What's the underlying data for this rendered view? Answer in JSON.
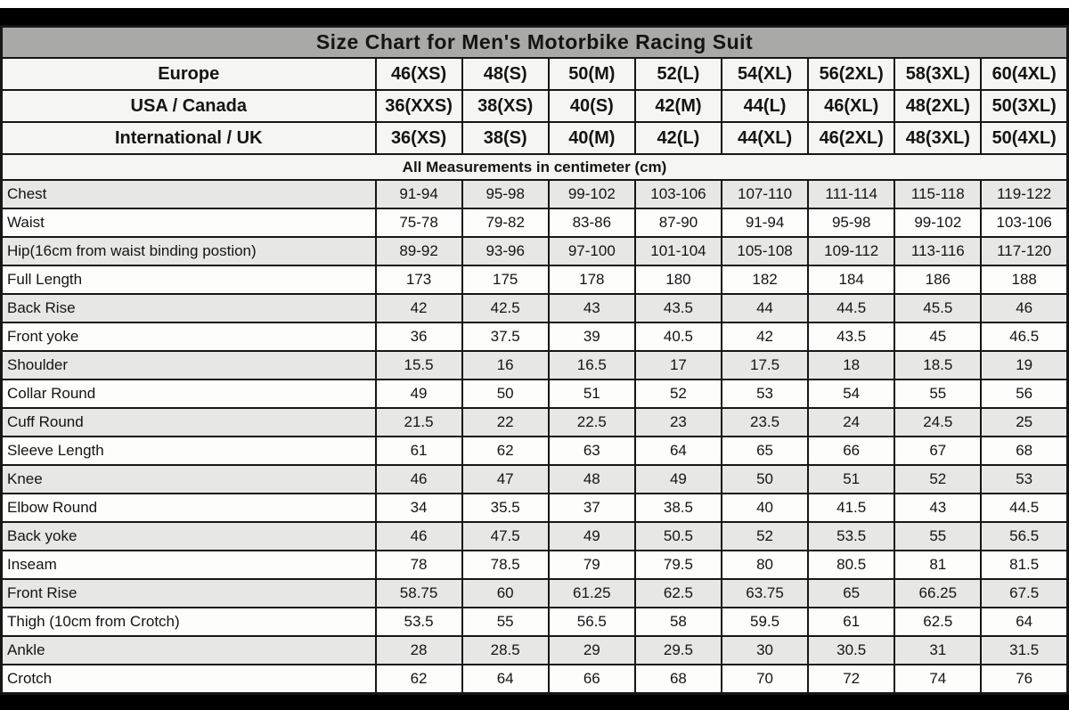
{
  "chart_data": {
    "type": "table",
    "title": "Size Chart for Men's Motorbike Racing Suit",
    "units_note": "All Measurements in centimeter (cm)",
    "size_systems": [
      {
        "label": "Europe",
        "sizes": [
          "46(XS)",
          "48(S)",
          "50(M)",
          "52(L)",
          "54(XL)",
          "56(2XL)",
          "58(3XL)",
          "60(4XL)"
        ]
      },
      {
        "label": "USA / Canada",
        "sizes": [
          "36(XXS)",
          "38(XS)",
          "40(S)",
          "42(M)",
          "44(L)",
          "46(XL)",
          "48(2XL)",
          "50(3XL)"
        ]
      },
      {
        "label": "International / UK",
        "sizes": [
          "36(XS)",
          "38(S)",
          "40(M)",
          "42(L)",
          "44(XL)",
          "46(2XL)",
          "48(3XL)",
          "50(4XL)"
        ]
      }
    ],
    "measurements": [
      {
        "label": "Chest",
        "values": [
          "91-94",
          "95-98",
          "99-102",
          "103-106",
          "107-110",
          "111-114",
          "115-118",
          "119-122"
        ]
      },
      {
        "label": "Waist",
        "values": [
          "75-78",
          "79-82",
          "83-86",
          "87-90",
          "91-94",
          "95-98",
          "99-102",
          "103-106"
        ]
      },
      {
        "label": "Hip(16cm from waist binding postion)",
        "values": [
          "89-92",
          "93-96",
          "97-100",
          "101-104",
          "105-108",
          "109-112",
          "113-116",
          "117-120"
        ]
      },
      {
        "label": "Full Length",
        "values": [
          "173",
          "175",
          "178",
          "180",
          "182",
          "184",
          "186",
          "188"
        ]
      },
      {
        "label": "Back Rise",
        "values": [
          "42",
          "42.5",
          "43",
          "43.5",
          "44",
          "44.5",
          "45.5",
          "46"
        ]
      },
      {
        "label": "Front yoke",
        "values": [
          "36",
          "37.5",
          "39",
          "40.5",
          "42",
          "43.5",
          "45",
          "46.5"
        ]
      },
      {
        "label": "Shoulder",
        "values": [
          "15.5",
          "16",
          "16.5",
          "17",
          "17.5",
          "18",
          "18.5",
          "19"
        ]
      },
      {
        "label": "Collar Round",
        "values": [
          "49",
          "50",
          "51",
          "52",
          "53",
          "54",
          "55",
          "56"
        ]
      },
      {
        "label": "Cuff Round",
        "values": [
          "21.5",
          "22",
          "22.5",
          "23",
          "23.5",
          "24",
          "24.5",
          "25"
        ]
      },
      {
        "label": "Sleeve Length",
        "values": [
          "61",
          "62",
          "63",
          "64",
          "65",
          "66",
          "67",
          "68"
        ]
      },
      {
        "label": "Knee",
        "values": [
          "46",
          "47",
          "48",
          "49",
          "50",
          "51",
          "52",
          "53"
        ]
      },
      {
        "label": "Elbow Round",
        "values": [
          "34",
          "35.5",
          "37",
          "38.5",
          "40",
          "41.5",
          "43",
          "44.5"
        ]
      },
      {
        "label": "Back yoke",
        "values": [
          "46",
          "47.5",
          "49",
          "50.5",
          "52",
          "53.5",
          "55",
          "56.5"
        ]
      },
      {
        "label": "Inseam",
        "values": [
          "78",
          "78.5",
          "79",
          "79.5",
          "80",
          "80.5",
          "81",
          "81.5"
        ]
      },
      {
        "label": "Front Rise",
        "values": [
          "58.75",
          "60",
          "61.25",
          "62.5",
          "63.75",
          "65",
          "66.25",
          "67.5"
        ]
      },
      {
        "label": "Thigh (10cm from Crotch)",
        "values": [
          "53.5",
          "55",
          "56.5",
          "58",
          "59.5",
          "61",
          "62.5",
          "64"
        ]
      },
      {
        "label": "Ankle",
        "values": [
          "28",
          "28.5",
          "29",
          "29.5",
          "30",
          "30.5",
          "31",
          "31.5"
        ]
      },
      {
        "label": "Crotch",
        "values": [
          "62",
          "64",
          "66",
          "68",
          "70",
          "72",
          "74",
          "76"
        ]
      }
    ]
  },
  "colors": {
    "title_bar_bg": "#a9a9a7",
    "title_text": "#ffffff",
    "header_row_bg": "#f5f5f3",
    "shaded_row_bg": "#e7e7e5",
    "plain_row_bg": "#fdfdfc",
    "grid_border": "#161616",
    "frame_bar": "#000000"
  }
}
